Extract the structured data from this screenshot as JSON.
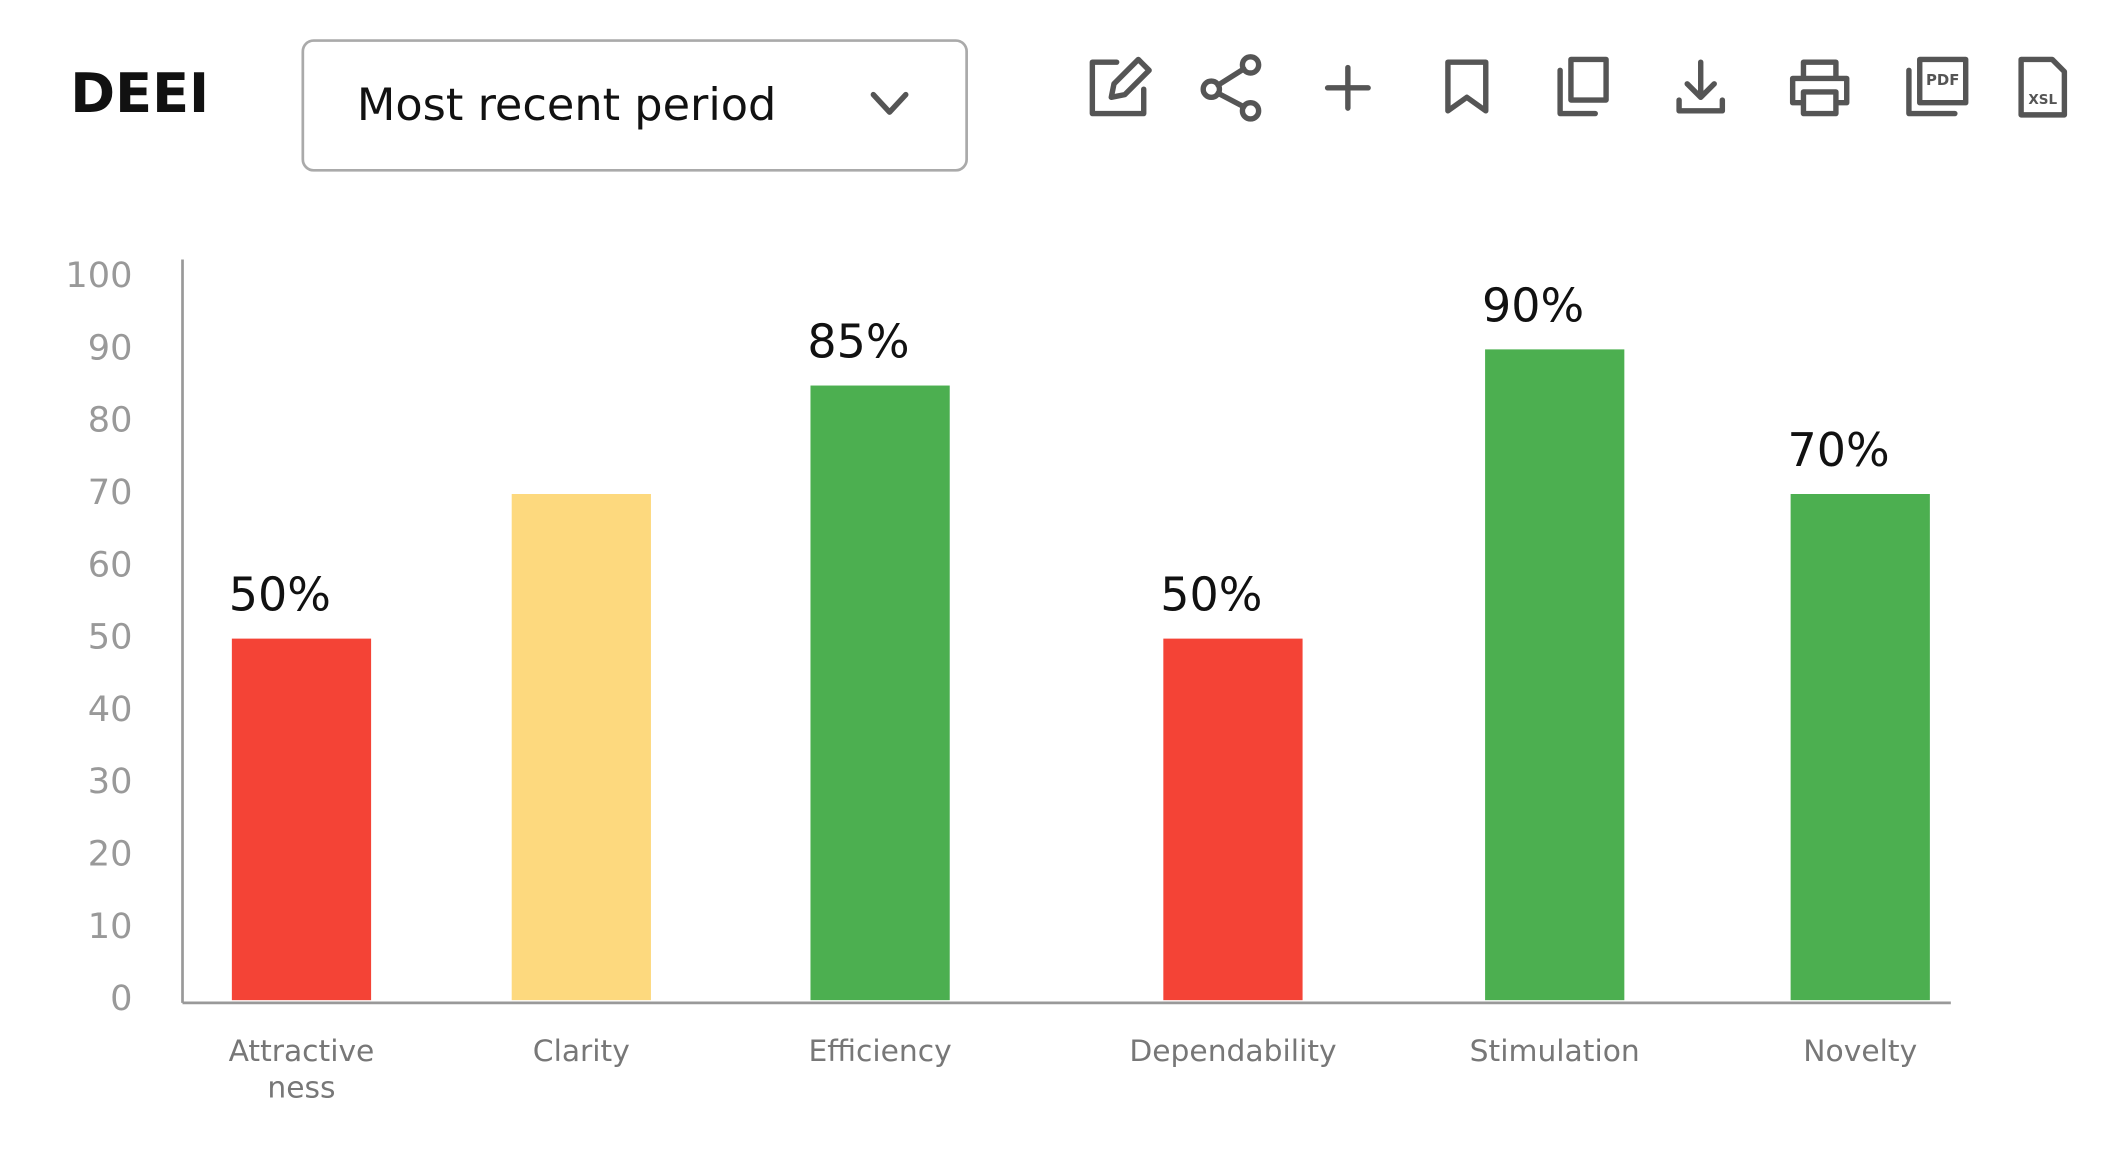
{
  "header": {
    "title": "DEEI",
    "period_select": "Most recent period"
  },
  "toolbar": {
    "pdf_label": "PDF",
    "xsl_label": "XSL"
  },
  "chart_data": {
    "type": "bar",
    "categories": [
      "Attractiveness",
      "Clarity",
      "Efficiency",
      "Dependability",
      "Stimulation",
      "Novelty"
    ],
    "values": [
      50,
      70,
      85,
      50,
      90,
      70
    ],
    "value_labels": [
      "50%",
      null,
      "85%",
      "50%",
      "90%",
      "70%"
    ],
    "colors": [
      "#f44336",
      "#fdd97e",
      "#4caf50",
      "#f44336",
      "#4caf50",
      "#4caf50"
    ],
    "ylim": [
      0,
      100
    ],
    "yticks": [
      0,
      10,
      20,
      30,
      40,
      50,
      60,
      70,
      80,
      90,
      100
    ],
    "grid": false
  }
}
